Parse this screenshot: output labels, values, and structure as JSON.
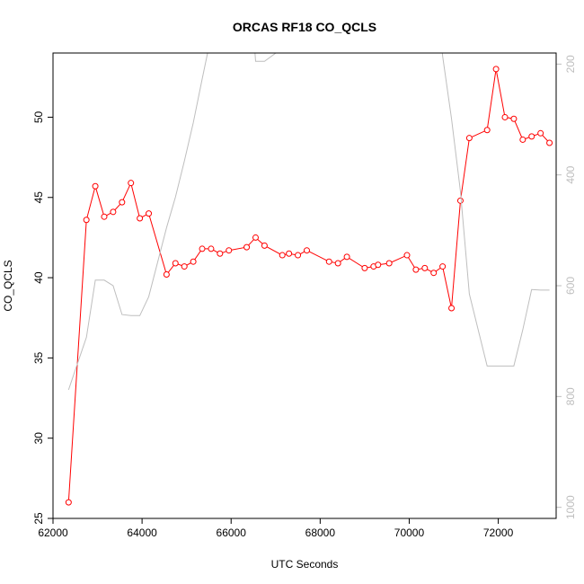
{
  "chart_data": {
    "type": "line",
    "title": "ORCAS RF18 CO_QCLS",
    "xlabel": "UTC Seconds",
    "ylabel": "CO_QCLS",
    "xlim": [
      62000,
      73300
    ],
    "ylim": [
      25,
      54
    ],
    "x_ticks": [
      62000,
      64000,
      66000,
      68000,
      70000,
      72000
    ],
    "y_ticks": [
      25,
      30,
      35,
      40,
      45,
      50
    ],
    "y2_ticks": [
      200,
      400,
      600,
      800,
      1000
    ],
    "y2lim": [
      1020,
      180
    ],
    "series": [
      {
        "axis": "left",
        "color": "#ff0000",
        "marker": "open-circle",
        "x": [
          62350,
          62750,
          62950,
          63150,
          63350,
          63550,
          63750,
          63950,
          64150,
          64550,
          64750,
          64950,
          65150,
          65350,
          65550,
          65750,
          65950,
          66350,
          66550,
          66750,
          67150,
          67300,
          67500,
          67700,
          68200,
          68400,
          68600,
          69000,
          69200,
          69300,
          69550,
          69950,
          70150,
          70350,
          70550,
          70750,
          70950,
          71150,
          71350,
          71750,
          71950,
          72150,
          72350,
          72550,
          72750,
          72950,
          73150
        ],
        "y": [
          26.0,
          43.6,
          45.7,
          43.8,
          44.1,
          44.7,
          45.9,
          43.7,
          44.0,
          40.2,
          40.9,
          40.7,
          41.0,
          41.8,
          41.8,
          41.5,
          41.7,
          41.9,
          42.5,
          42.0,
          41.4,
          41.5,
          41.4,
          41.7,
          41.0,
          40.9,
          41.3,
          40.6,
          40.7,
          40.8,
          40.9,
          41.4,
          40.5,
          40.6,
          40.3,
          40.7,
          38.1,
          44.8,
          48.7,
          49.2,
          53.0,
          50.0,
          49.9,
          48.6,
          48.8,
          49.0,
          48.4
        ]
      },
      {
        "axis": "right",
        "color": "#bebebe",
        "marker": "none",
        "x": [
          62350,
          62750,
          62950,
          63150,
          63350,
          63550,
          63750,
          63950,
          64150,
          64550,
          64750,
          64950,
          65150,
          65350,
          65550,
          65750,
          65950,
          66350,
          66550,
          66750,
          70550,
          70750,
          70950,
          71150,
          71350,
          71750,
          71950,
          72150,
          72350,
          72550,
          72750,
          72950,
          73150
        ],
        "y": [
          788,
          693,
          590,
          590,
          600,
          652,
          654,
          654,
          620,
          495,
          440,
          375,
          306,
          227,
          150,
          80,
          20,
          -20,
          195,
          195,
          -30,
          185,
          298,
          430,
          615,
          745,
          745,
          745,
          745,
          680,
          607,
          608,
          608
        ]
      }
    ]
  }
}
